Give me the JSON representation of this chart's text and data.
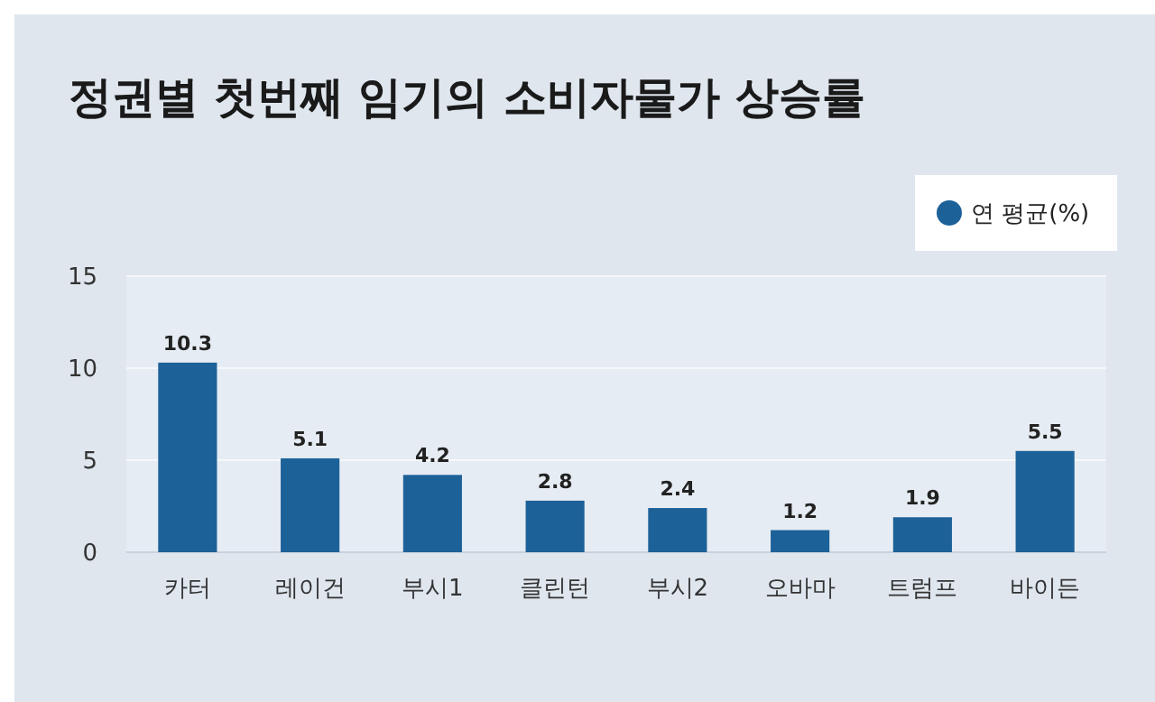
{
  "chart_data": {
    "type": "bar",
    "title": "정권별 첫번째 임기의 소비자물가 상승률",
    "categories": [
      "카터",
      "레이건",
      "부시1",
      "클린턴",
      "부시2",
      "오바마",
      "트럼프",
      "바이든"
    ],
    "series": [
      {
        "name": "연 평균(%)",
        "color": "#1d6199",
        "values": [
          10.3,
          5.1,
          4.2,
          2.8,
          2.4,
          1.2,
          1.9,
          5.5
        ]
      }
    ],
    "ylim": [
      0,
      15
    ],
    "yticks": [
      0,
      5,
      10,
      15
    ],
    "grid": "y",
    "legend": "top right",
    "data_labels": true
  }
}
